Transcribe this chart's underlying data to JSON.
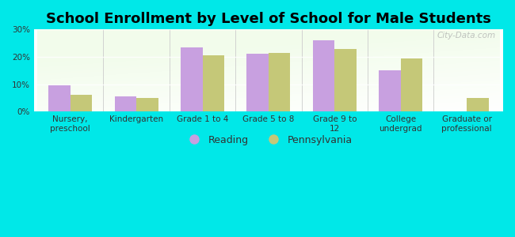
{
  "title": "School Enrollment by Level of School for Male Students",
  "categories": [
    "Nursery,\npreschool",
    "Kindergarten",
    "Grade 1 to 4",
    "Grade 5 to 8",
    "Grade 9 to\n12",
    "College\nundergrad",
    "Graduate or\nprofessional"
  ],
  "reading": [
    9.5,
    5.5,
    23.5,
    21.0,
    26.0,
    15.0,
    0.0
  ],
  "pennsylvania": [
    6.0,
    5.0,
    20.5,
    21.5,
    23.0,
    19.5,
    5.0
  ],
  "reading_color": "#c8a0e0",
  "pennsylvania_color": "#c5c878",
  "bar_width": 0.33,
  "ylim": [
    0,
    30
  ],
  "yticks": [
    0,
    10,
    20,
    30
  ],
  "yticklabels": [
    "0%",
    "10%",
    "20%",
    "30%"
  ],
  "background_color": "#00e8e8",
  "title_fontsize": 13,
  "tick_fontsize": 7.5,
  "legend_fontsize": 9,
  "watermark": "City-Data.com"
}
